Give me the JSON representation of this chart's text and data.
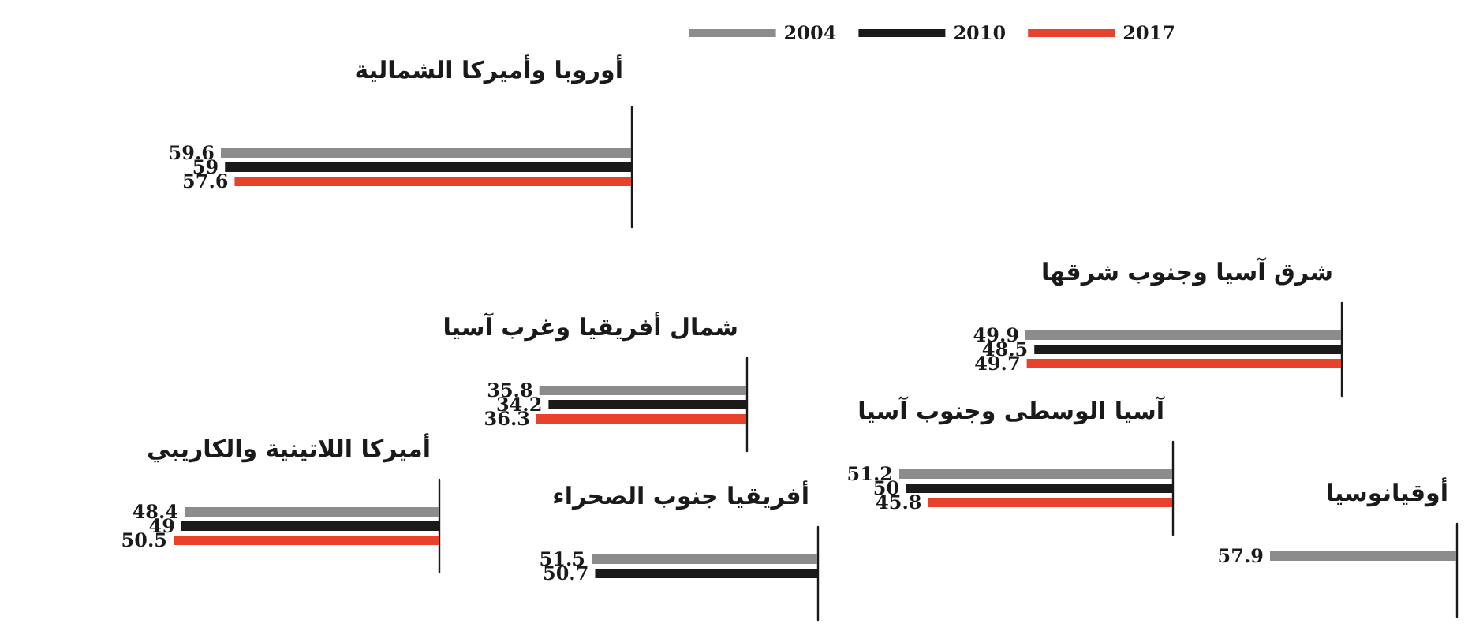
{
  "chart_data": [
    {
      "type": "bar",
      "orientation": "horizontal",
      "title": "أوروبا وأميركا الشمالية",
      "categories": [
        null
      ],
      "legend": "top right",
      "data_labels": true,
      "tick_labels": false,
      "series": [
        {
          "name": "2004",
          "color": "#8c8c8c",
          "values": [
            59.6
          ]
        },
        {
          "name": "2010",
          "color": "#1a1a1a",
          "values": [
            59
          ]
        },
        {
          "name": "2017",
          "color": "#e8412c",
          "values": [
            57.6
          ]
        }
      ]
    },
    {
      "type": "bar",
      "orientation": "horizontal",
      "title": "شرق آسيا وجنوب شرقها",
      "categories": [
        null
      ],
      "data_labels": true,
      "tick_labels": false,
      "series": [
        {
          "color": "#8c8c8c",
          "values": [
            49.9
          ]
        },
        {
          "color": "#1a1a1a",
          "values": [
            48.5
          ]
        },
        {
          "color": "#e8412c",
          "values": [
            49.7
          ]
        }
      ]
    },
    {
      "type": "bar",
      "orientation": "horizontal",
      "title": "شمال أفريقيا وغرب آسيا",
      "categories": [
        null
      ],
      "data_labels": true,
      "tick_labels": false,
      "series": [
        {
          "color": "#8c8c8c",
          "values": [
            35.8
          ]
        },
        {
          "color": "#1a1a1a",
          "values": [
            34.2
          ]
        },
        {
          "color": "#e8412c",
          "values": [
            36.3
          ]
        }
      ]
    },
    {
      "type": "bar",
      "orientation": "horizontal",
      "title": "آسيا الوسطى وجنوب آسيا",
      "categories": [
        null
      ],
      "data_labels": true,
      "tick_labels": false,
      "series": [
        {
          "color": "#8c8c8c",
          "values": [
            51.2
          ]
        },
        {
          "color": "#1a1a1a",
          "values": [
            50
          ]
        },
        {
          "color": "#e8412c",
          "values": [
            45.8
          ]
        }
      ]
    },
    {
      "type": "bar",
      "orientation": "horizontal",
      "title": "أميركا اللاتينية والكاريبي",
      "categories": [
        null
      ],
      "data_labels": true,
      "tick_labels": false,
      "series": [
        {
          "color": "#8c8c8c",
          "values": [
            48.4
          ]
        },
        {
          "color": "#1a1a1a",
          "values": [
            49
          ]
        },
        {
          "color": "#e8412c",
          "values": [
            50.5
          ]
        }
      ]
    },
    {
      "type": "bar",
      "orientation": "horizontal",
      "title": "أفريقيا جنوب الصحراء",
      "categories": [
        null
      ],
      "data_labels": true,
      "tick_labels": false,
      "series": [
        {
          "color": "#8c8c8c",
          "values": [
            51.5
          ]
        },
        {
          "color": "#1a1a1a",
          "values": [
            50.7
          ]
        },
        {
          "color": "#e8412c",
          "values": [
            null
          ]
        }
      ]
    },
    {
      "type": "bar",
      "orientation": "horizontal",
      "title": "أوقيانوسيا",
      "categories": [
        null
      ],
      "data_labels": true,
      "tick_labels": false,
      "series": [
        {
          "color": "#8c8c8c",
          "values": [
            57.9
          ]
        },
        {
          "color": "#1a1a1a",
          "values": [
            null
          ]
        },
        {
          "color": "#e8412c",
          "values": [
            null
          ]
        }
      ]
    }
  ]
}
